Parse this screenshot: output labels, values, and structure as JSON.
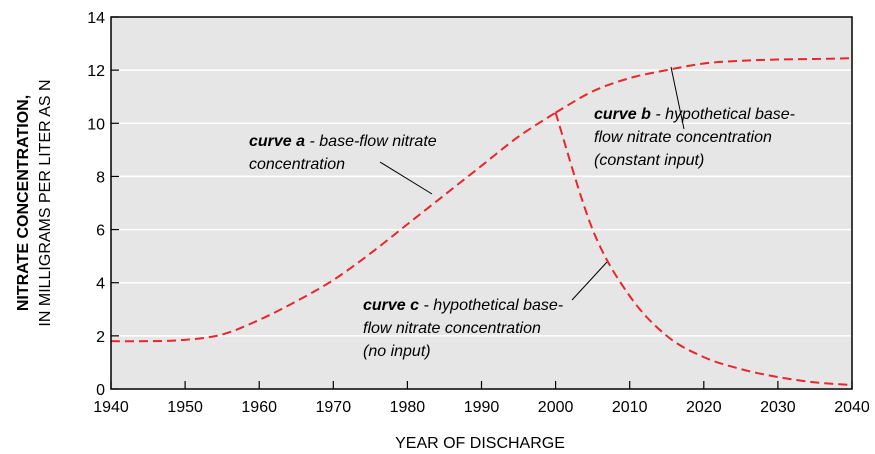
{
  "chart_data": {
    "type": "line",
    "x": [
      1940,
      1945,
      1950,
      1955,
      1960,
      1965,
      1970,
      1975,
      1980,
      1985,
      1990,
      1995,
      2000,
      2005,
      2010,
      2015,
      2020,
      2025,
      2030,
      2035,
      2040
    ],
    "series": [
      {
        "color": "#e8262b",
        "values": [
          1.8,
          1.8,
          1.85,
          2.05,
          2.6,
          3.3,
          4.1,
          5.1,
          6.2,
          7.3,
          8.4,
          9.5,
          10.4,
          null,
          null,
          null,
          null,
          null,
          null,
          null,
          null
        ]
      },
      {
        "color": "#e8262b",
        "values": [
          null,
          null,
          null,
          null,
          null,
          null,
          null,
          null,
          null,
          null,
          null,
          null,
          10.4,
          11.2,
          11.7,
          12.0,
          12.25,
          12.35,
          12.4,
          12.42,
          12.45
        ]
      },
      {
        "color": "#e8262b",
        "values": [
          null,
          null,
          null,
          null,
          null,
          null,
          null,
          null,
          null,
          null,
          null,
          null,
          10.4,
          6.0,
          3.5,
          2.0,
          1.2,
          0.75,
          0.45,
          0.25,
          0.15
        ]
      }
    ],
    "xlim": [
      1940,
      2040
    ],
    "xticks": [
      1940,
      1950,
      1960,
      1970,
      1980,
      1990,
      2000,
      2010,
      2020,
      2030,
      2040
    ],
    "ylim": [
      0,
      14
    ],
    "yticks": [
      0,
      2,
      4,
      6,
      8,
      10,
      12,
      14
    ],
    "grid": true,
    "dashed": true,
    "xlabel": "YEAR OF DISCHARGE",
    "ylabel": [
      "NITRATE CONCENTRATION,",
      "IN MILLIGRAMS PER LITER AS N"
    ],
    "annotations": [
      {
        "label": "curve a",
        "lines": [
          " - base-flow nitrate",
          "concentration"
        ]
      },
      {
        "label": "curve b",
        "lines": [
          " - hypothetical base-",
          "flow nitrate concentration",
          "(constant input)"
        ]
      },
      {
        "label": "curve c",
        "lines": [
          " - hypothetical base-",
          "flow nitrate concentration",
          "(no input)"
        ]
      }
    ]
  }
}
